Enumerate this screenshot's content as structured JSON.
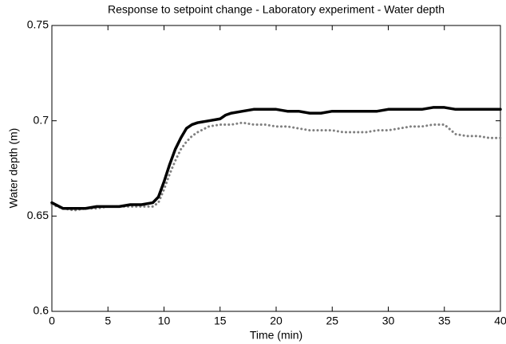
{
  "chart_data": {
    "type": "line",
    "title": "Response to setpoint change  - Laboratory experiment - Water depth",
    "x_label": "Time (min)",
    "y_label": "Water depth (m)",
    "x": [
      0,
      1,
      2,
      3,
      4,
      5,
      6,
      7,
      8,
      9,
      9.5,
      10,
      10.5,
      11,
      11.5,
      12,
      12.5,
      13,
      14,
      15,
      15.5,
      16,
      17,
      18,
      19,
      20,
      21,
      22,
      23,
      24,
      25,
      26,
      27,
      28,
      29,
      30,
      31,
      32,
      33,
      34,
      35,
      36,
      37,
      38,
      39,
      40
    ],
    "series": [
      {
        "color": "#000000",
        "style": "solid",
        "values": [
          0.657,
          0.654,
          0.654,
          0.654,
          0.655,
          0.655,
          0.655,
          0.656,
          0.656,
          0.657,
          0.66,
          0.668,
          0.677,
          0.685,
          0.691,
          0.696,
          0.698,
          0.699,
          0.7,
          0.701,
          0.703,
          0.704,
          0.705,
          0.706,
          0.706,
          0.706,
          0.705,
          0.705,
          0.704,
          0.704,
          0.705,
          0.705,
          0.705,
          0.705,
          0.705,
          0.706,
          0.706,
          0.706,
          0.706,
          0.707,
          0.707,
          0.706,
          0.706,
          0.706,
          0.706,
          0.706
        ]
      },
      {
        "color": "#808080",
        "style": "dotted",
        "values": [
          0.656,
          0.654,
          0.653,
          0.654,
          0.654,
          0.655,
          0.655,
          0.655,
          0.655,
          0.655,
          0.657,
          0.664,
          0.672,
          0.679,
          0.685,
          0.689,
          0.692,
          0.694,
          0.697,
          0.698,
          0.698,
          0.698,
          0.699,
          0.698,
          0.698,
          0.697,
          0.697,
          0.696,
          0.695,
          0.695,
          0.695,
          0.694,
          0.694,
          0.694,
          0.695,
          0.695,
          0.696,
          0.697,
          0.697,
          0.698,
          0.698,
          0.693,
          0.692,
          0.692,
          0.691,
          0.691
        ]
      }
    ],
    "xlim": [
      0,
      40
    ],
    "xticks": [
      0,
      5,
      10,
      15,
      20,
      25,
      30,
      35,
      40
    ],
    "ylim": [
      0.6,
      0.75
    ],
    "yticks": [
      0.6,
      0.65,
      0.7,
      0.75
    ],
    "grid": false
  }
}
